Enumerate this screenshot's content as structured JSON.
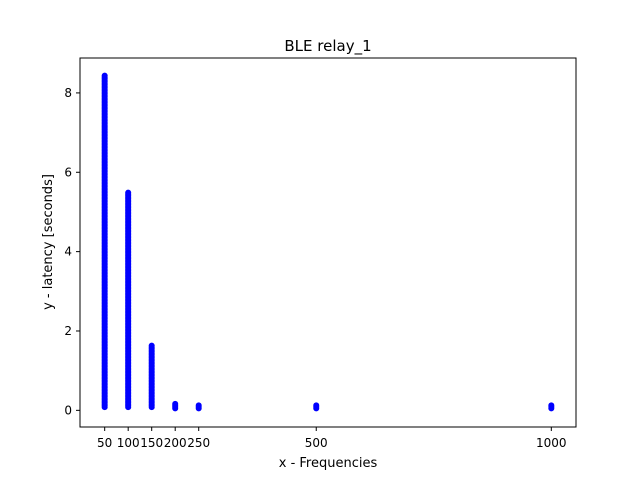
{
  "chart_data": {
    "type": "scatter",
    "title": "BLE relay_1",
    "xlabel": "x - Frequencies",
    "ylabel": "y - latency [seconds]",
    "xlim": [
      -2.5,
      1052.5
    ],
    "ylim": [
      -0.42,
      8.88
    ],
    "x_ticks": [
      50,
      100,
      150,
      200,
      250,
      500,
      1000
    ],
    "y_ticks": [
      0,
      2,
      4,
      6,
      8
    ],
    "grid": false,
    "marker_color": "#0000ff",
    "series": [
      {
        "x_groups": [
          {
            "x": 50,
            "y_min": 0.08,
            "y_max": 8.45
          },
          {
            "x": 100,
            "y_min": 0.08,
            "y_max": 5.5
          },
          {
            "x": 150,
            "y_min": 0.08,
            "y_max": 1.63
          },
          {
            "x": 200,
            "y_min": 0.05,
            "y_max": 0.2
          },
          {
            "x": 250,
            "y_min": 0.05,
            "y_max": 0.15
          },
          {
            "x": 500,
            "y_min": 0.05,
            "y_max": 0.14
          },
          {
            "x": 1000,
            "y_min": 0.05,
            "y_max": 0.14
          }
        ]
      }
    ]
  }
}
